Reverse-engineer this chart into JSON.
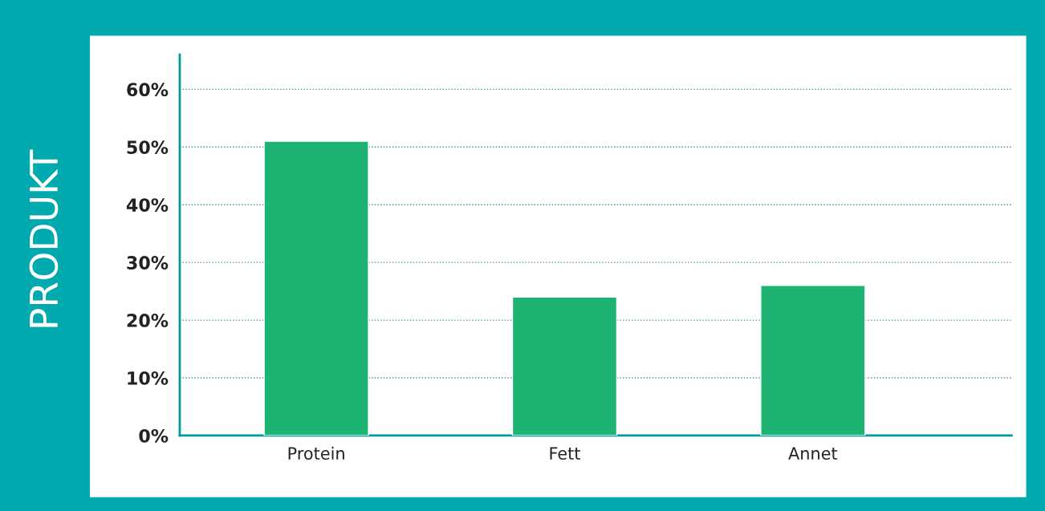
{
  "chart_data": {
    "type": "bar",
    "ylabel": "PRODUKT",
    "categories": [
      "Protein",
      "Fett",
      "Annet"
    ],
    "values": [
      51,
      24,
      26
    ],
    "color": "#1db373",
    "ylim": [
      0,
      66
    ],
    "yticks": [
      {
        "value": 0,
        "label": "0%"
      },
      {
        "value": 10,
        "label": "10%"
      },
      {
        "value": 20,
        "label": "20%"
      },
      {
        "value": 30,
        "label": "30%"
      },
      {
        "value": 40,
        "label": "40%"
      },
      {
        "value": 50,
        "label": "50%"
      },
      {
        "value": 60,
        "label": "60%"
      }
    ],
    "grid": "y"
  }
}
